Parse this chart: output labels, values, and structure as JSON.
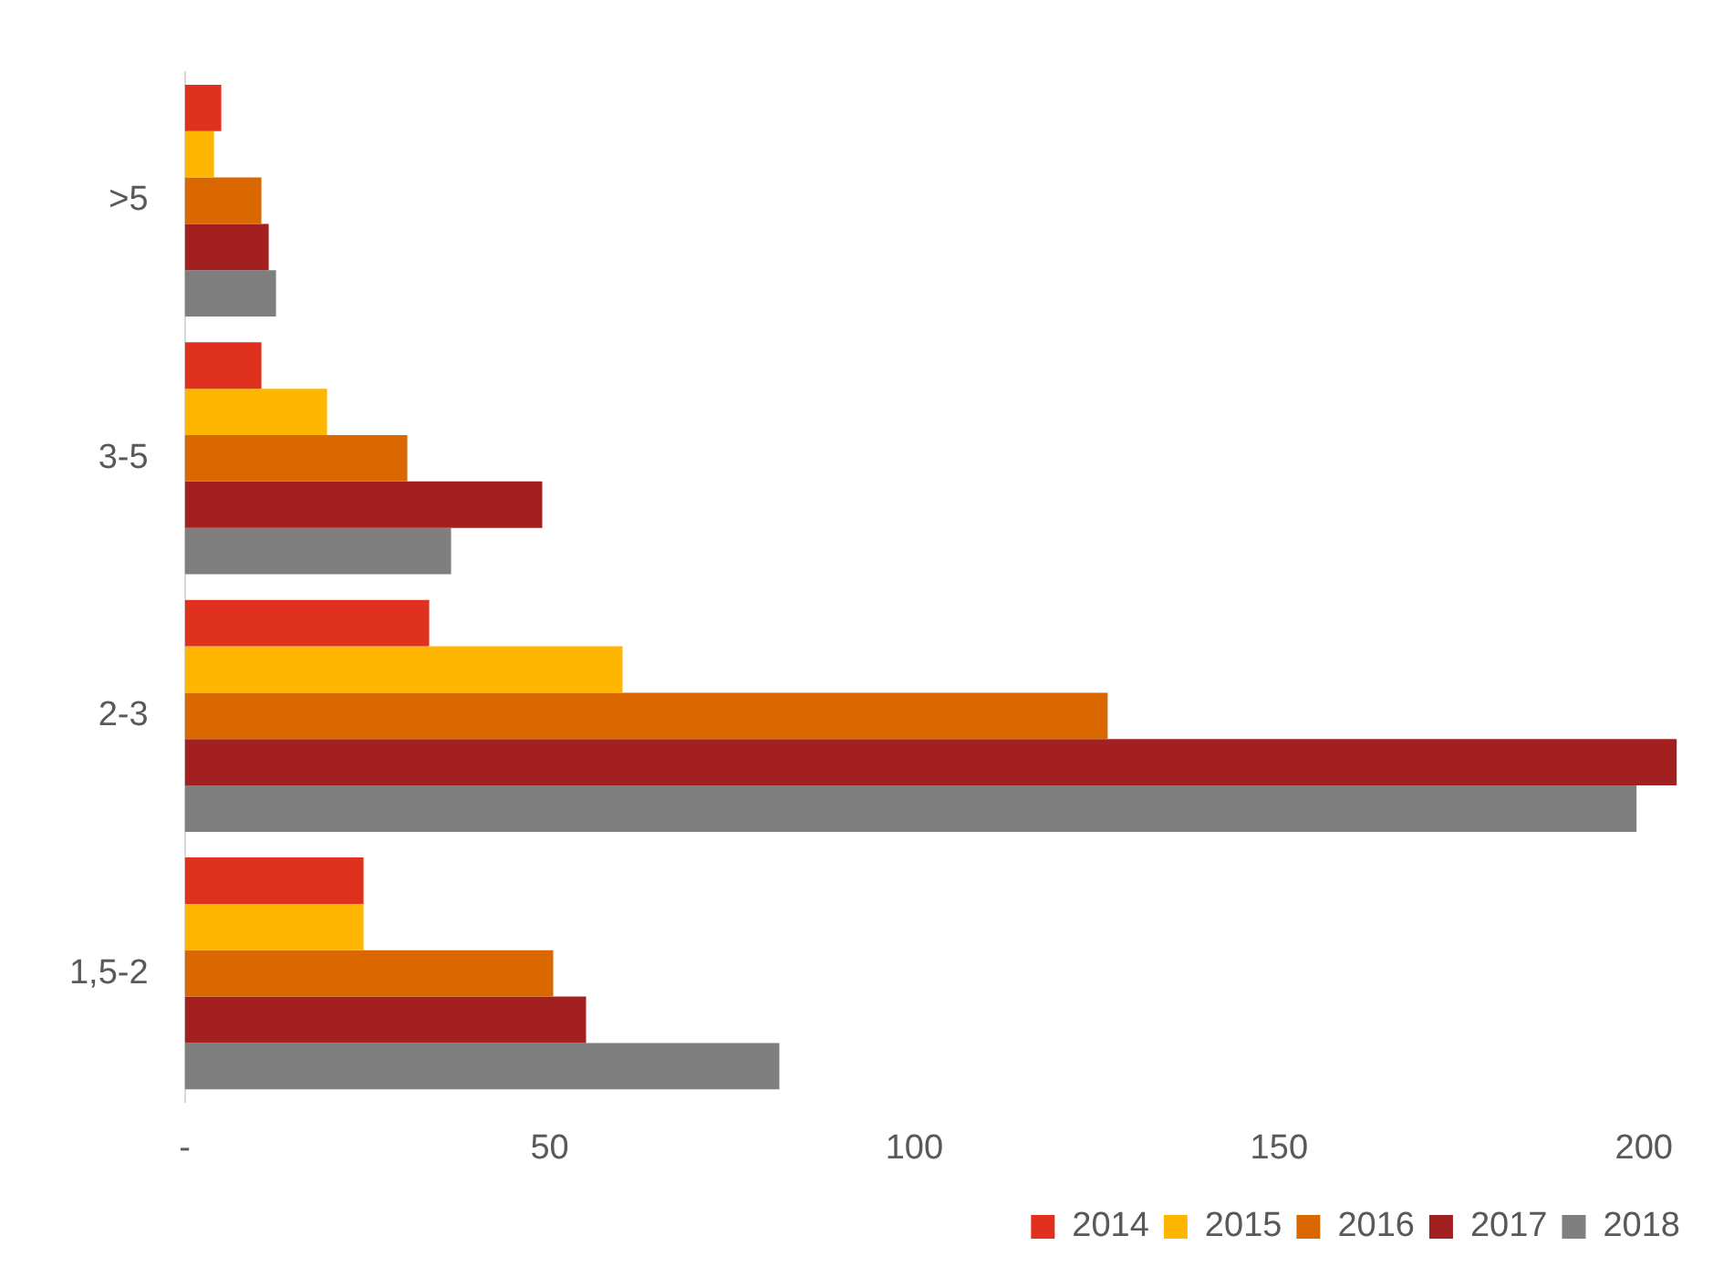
{
  "chart_data": {
    "type": "bar",
    "orientation": "horizontal",
    "categories": [
      ">5",
      "3-5",
      "2-3",
      "1,5-2"
    ],
    "series": [
      {
        "name": "2014",
        "color": "#e0301e",
        "values": [
          5,
          10.5,
          33.5,
          24.5
        ]
      },
      {
        "name": "2015",
        "color": "#ffb600",
        "values": [
          4,
          19.5,
          60,
          24.5
        ]
      },
      {
        "name": "2016",
        "color": "#db6700",
        "values": [
          10.5,
          30.5,
          126.5,
          50.5
        ]
      },
      {
        "name": "2017",
        "color": "#a32020",
        "values": [
          11.5,
          49,
          204.5,
          55
        ]
      },
      {
        "name": "2018",
        "color": "#7f7f7f",
        "values": [
          12.5,
          36.5,
          199,
          81.5
        ]
      }
    ],
    "xlim": [
      0,
      205
    ],
    "xticks": [
      {
        "value": 0,
        "label": "-"
      },
      50,
      100,
      150,
      200
    ],
    "grid": false,
    "legend": "bottom"
  }
}
